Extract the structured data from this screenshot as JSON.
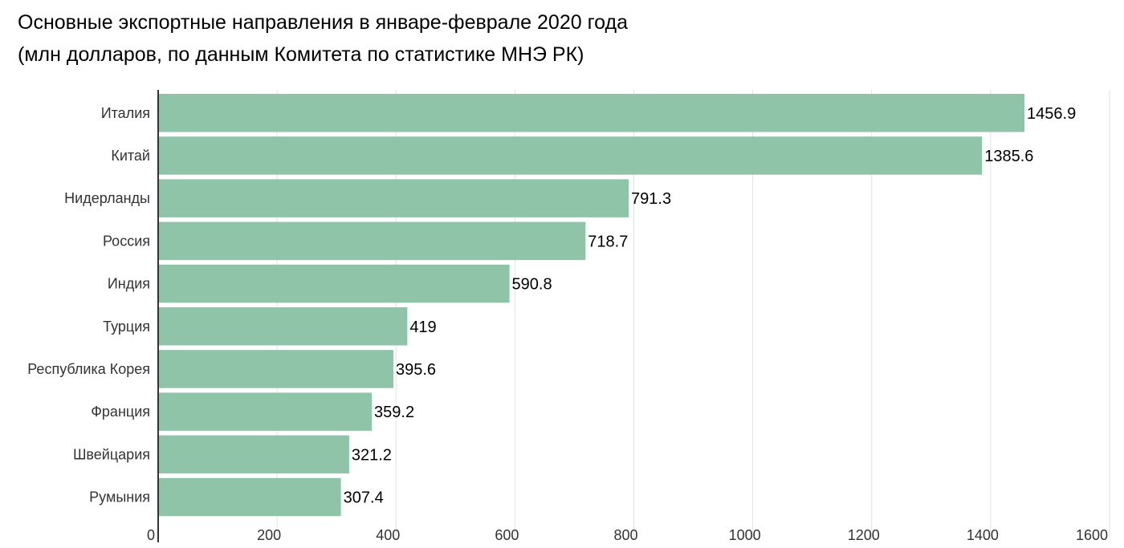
{
  "chart_data": {
    "type": "bar",
    "orientation": "horizontal",
    "title": "Основные экспортные направления в январе-феврале 2020 года",
    "subtitle": "(млн долларов, по данным Комитета по статистике МНЭ РК)",
    "categories": [
      "Италия",
      "Китай",
      "Нидерланды",
      "Россия",
      "Индия",
      "Турция",
      "Республика Корея",
      "Франция",
      "Швейцария",
      "Румыния"
    ],
    "values": [
      1456.9,
      1385.6,
      791.3,
      718.7,
      590.8,
      419,
      395.6,
      359.2,
      321.2,
      307.4
    ],
    "value_labels": [
      "1456.9",
      "1385.6",
      "791.3",
      "718.7",
      "590.8",
      "419",
      "395.6",
      "359.2",
      "321.2",
      "307.4"
    ],
    "xlim": [
      0,
      1600
    ],
    "x_ticks": [
      "0",
      "200",
      "400",
      "600",
      "800",
      "1000",
      "1200",
      "1400",
      "1600"
    ],
    "xlabel": "",
    "ylabel": "",
    "grid": "vertical",
    "legend": "none",
    "colors": {
      "bar": "#8fc4a8",
      "grid": "#e2e2e2",
      "axis": "#333333"
    }
  }
}
